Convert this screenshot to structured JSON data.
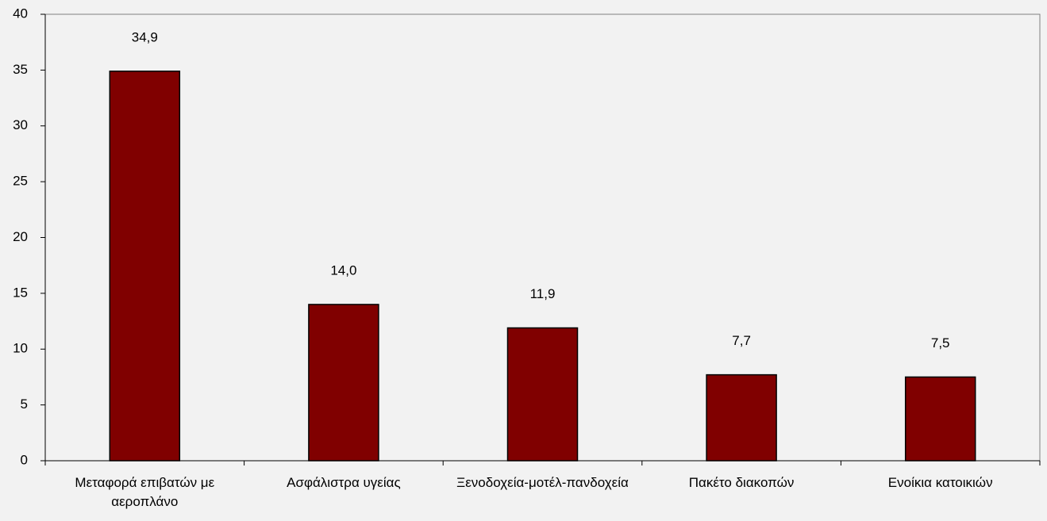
{
  "chart_data": {
    "type": "bar",
    "categories": [
      "Μεταφορά επιβατών με αεροπλάνο",
      "Ασφάλιστρα υγείας",
      "Ξενοδοχεία-μοτέλ-πανδοχεία",
      "Πακέτο διακοπών",
      "Ενοίκια κατοικιών"
    ],
    "values": [
      34.9,
      14.0,
      11.9,
      7.7,
      7.5
    ],
    "value_labels": [
      "34,9",
      "14,0",
      "11,9",
      "7,7",
      "7,5"
    ],
    "color": "#800000",
    "ylim": [
      0,
      40
    ],
    "yticks": [
      0,
      5,
      10,
      15,
      20,
      25,
      30,
      35,
      40
    ],
    "grid": false
  }
}
